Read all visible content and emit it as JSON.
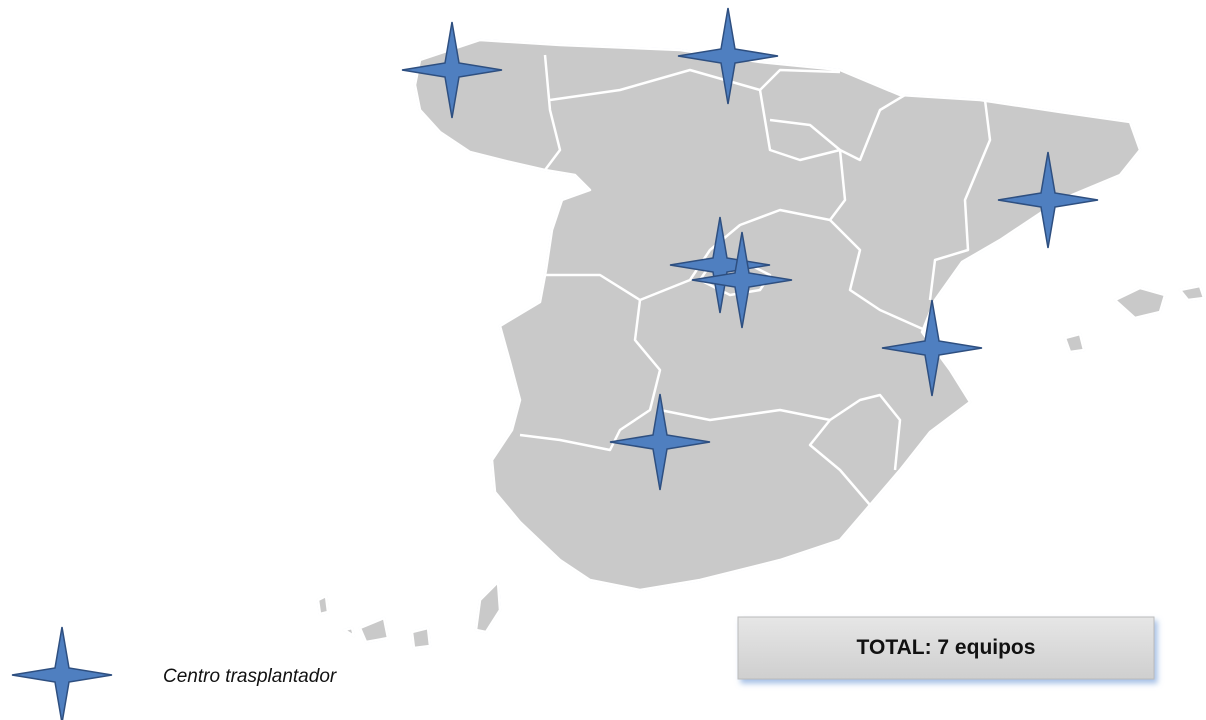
{
  "total_box": {
    "text": "TOTAL: 7 equipos"
  },
  "legend": {
    "label": "Centro trasplantador"
  }
}
